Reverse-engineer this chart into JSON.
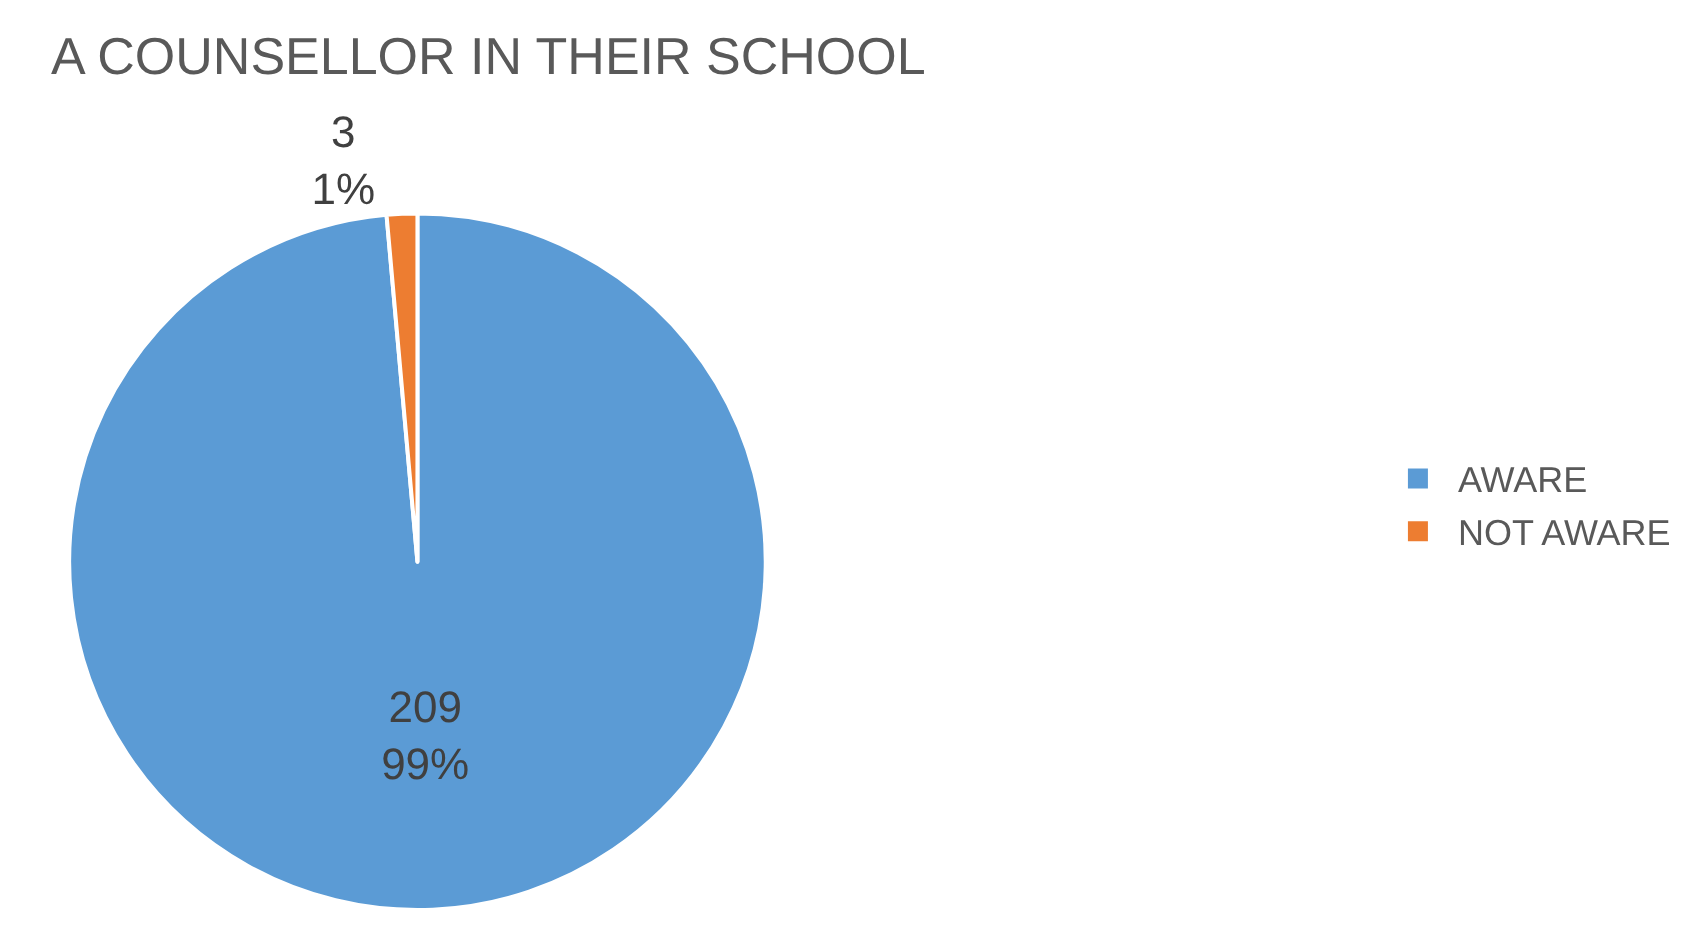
{
  "chart_data": {
    "type": "pie",
    "title": "A COUNSELLOR IN THEIR SCHOOL",
    "categories": [
      "AWARE",
      "NOT AWARE"
    ],
    "values": [
      209,
      3
    ],
    "colors": [
      "#5b9bd5",
      "#ed7d31"
    ],
    "value_labels": [
      "209\n99%",
      "3\n1%"
    ],
    "legend": "right"
  }
}
